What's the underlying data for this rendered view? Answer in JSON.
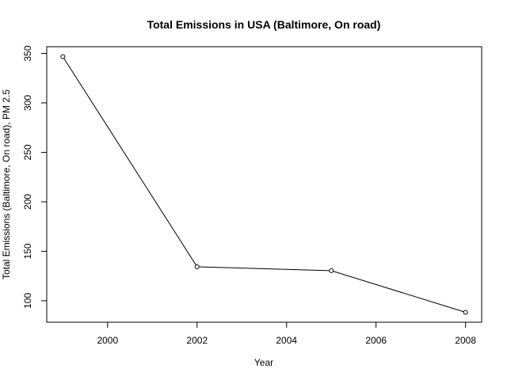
{
  "chart_data": {
    "type": "line",
    "title": "Total Emissions in  USA (Baltimore, On road)",
    "xlabel": "Year",
    "ylabel": "Total Emissions (Baltimore, On road), PM 2.5",
    "x": [
      1999,
      2002,
      2005,
      2008
    ],
    "series": [
      {
        "values": [
          346.8,
          134.3,
          130.4,
          88.3
        ]
      }
    ],
    "xlim": [
      1998.64,
      2008.36
    ],
    "ylim": [
      78.3,
      356.8
    ],
    "xticks": [
      2000,
      2002,
      2004,
      2006,
      2008
    ],
    "yticks": [
      100,
      150,
      200,
      250,
      300,
      350
    ],
    "grid": false,
    "marker": "open-circle",
    "line_color": "#000000"
  }
}
